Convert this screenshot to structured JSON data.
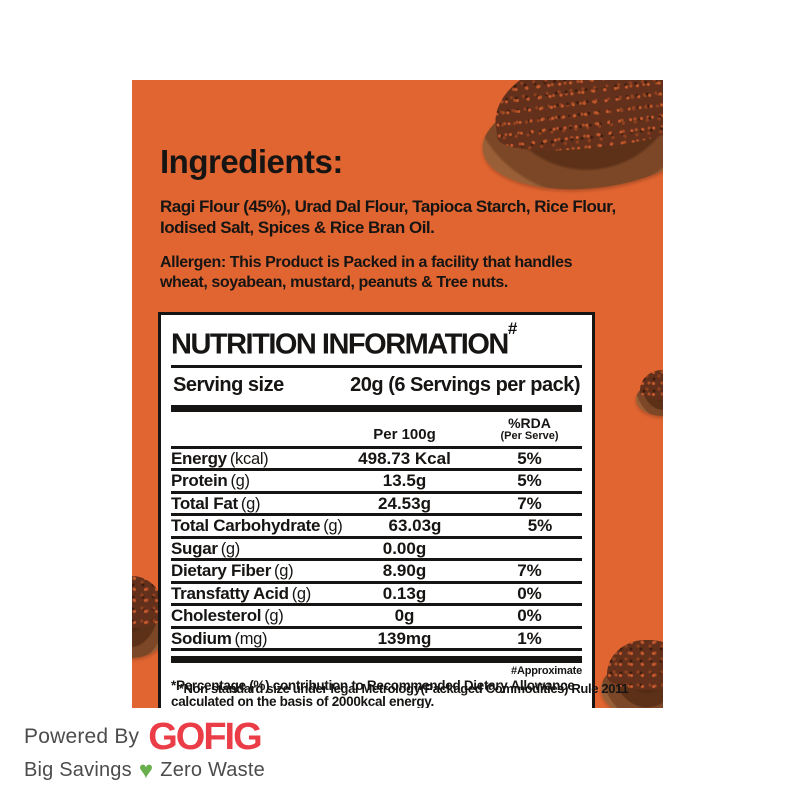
{
  "colors": {
    "card_bg": "#E16531",
    "ink": "#171513",
    "box_bg": "#FFFFFF",
    "brand_red": "#EA3D47",
    "heart_green": "#69AF4D",
    "footer_gray": "#4C4C4E"
  },
  "card": {
    "ingredients_heading": "Ingredients:",
    "ingredients_lines": [
      "Ragi Flour (45%), Urad Dal Flour, Tapioca Starch, Rice Flour,",
      "Iodised Salt, Spices & Rice Bran Oil."
    ],
    "allergen_lines": [
      "Allergen: This Product is Packed in a facility that handles",
      "wheat, soyabean, mustard, peanuts & Tree nuts."
    ],
    "nutrition": {
      "title": "NUTRITION INFORMATION",
      "title_mark": "#",
      "serving_label": "Serving size",
      "serving_value": "20g (6 Servings per pack)",
      "col_per": "Per 100g",
      "col_rda": "%RDA",
      "col_rda_sub": "(Per Serve)",
      "rows": [
        {
          "name": "Energy",
          "unit": "(kcal)",
          "per100": "498.73 Kcal",
          "rda": "5%"
        },
        {
          "name": "Protein",
          "unit": "(g)",
          "per100": "13.5g",
          "rda": "5%"
        },
        {
          "name": "Total Fat",
          "unit": "(g)",
          "per100": "24.53g",
          "rda": "7%"
        },
        {
          "name": "Total Carbohydrate",
          "unit": "(g)",
          "per100": "63.03g",
          "rda": "5%"
        },
        {
          "name": "Sugar",
          "unit": "(g)",
          "per100": "0.00g",
          "rda": ""
        },
        {
          "name": "Dietary Fiber",
          "unit": "(g)",
          "per100": "8.90g",
          "rda": "7%"
        },
        {
          "name": "Transfatty Acid",
          "unit": "(g)",
          "per100": "0.13g",
          "rda": "0%"
        },
        {
          "name": "Cholesterol",
          "unit": "(g)",
          "per100": "0g",
          "rda": "0%"
        },
        {
          "name": "Sodium",
          "unit": "(mg)",
          "per100": "139mg",
          "rda": "1%"
        }
      ],
      "approx_note": "#Approximate",
      "rda_note_lines": [
        "*Percentage (%) contribution to Recommended Dietary Allowance",
        "calculated on the basis of 2000kcal energy."
      ]
    },
    "legal_note": "*Non standard size under legal Metrology(Packaged Commodities) Rule 2011"
  },
  "footer": {
    "powered_by": "Powered By",
    "brand": "GOFIG",
    "tagline_before": "Big Savings",
    "heart": "♥",
    "tagline_after": "Zero Waste"
  }
}
